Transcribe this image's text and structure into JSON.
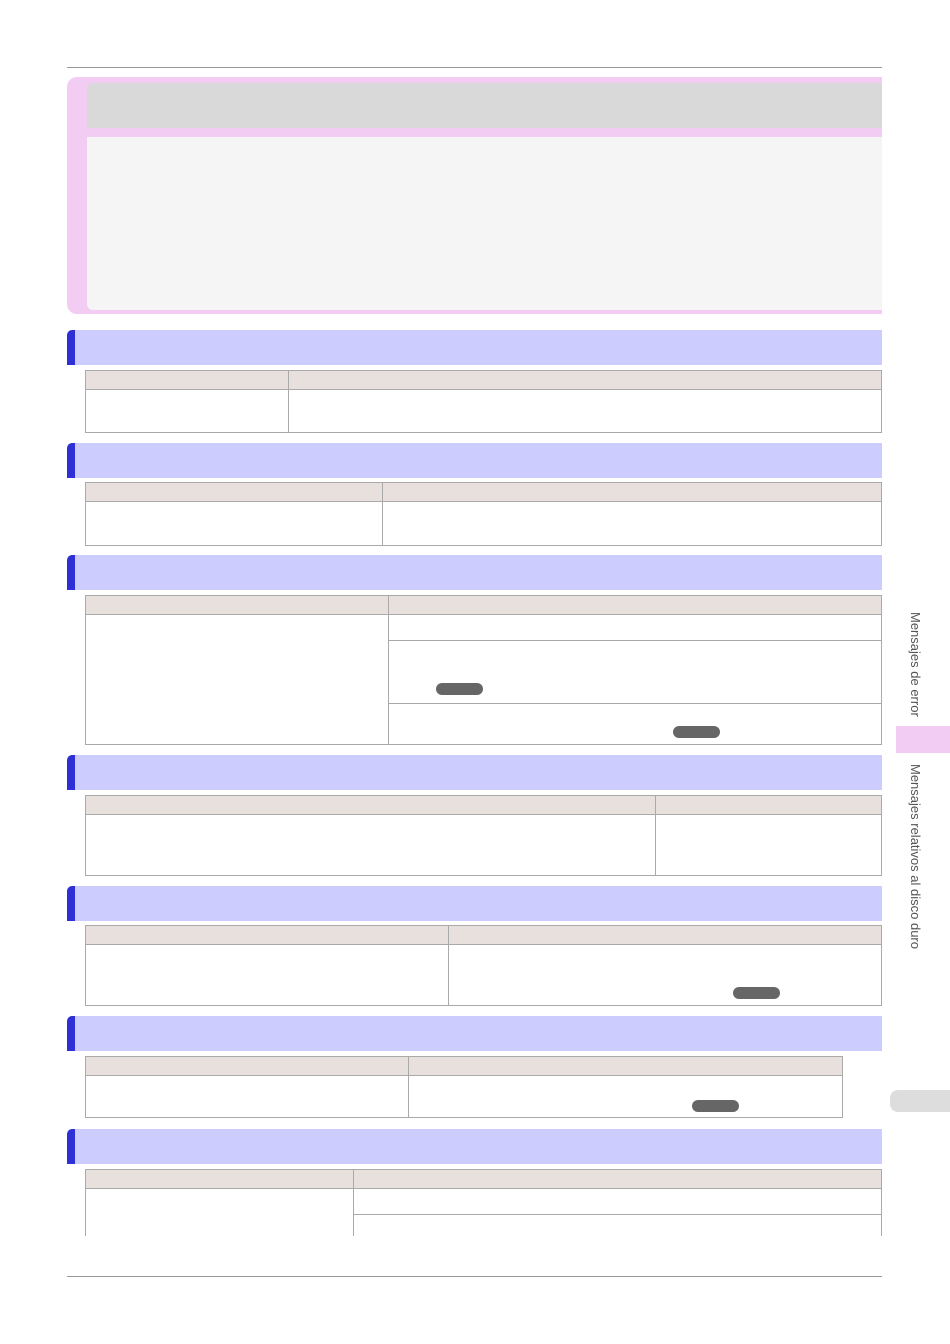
{
  "side_tab": {
    "section": "Mensajes de error",
    "subsection": "Mensajes relativos al disco duro"
  }
}
